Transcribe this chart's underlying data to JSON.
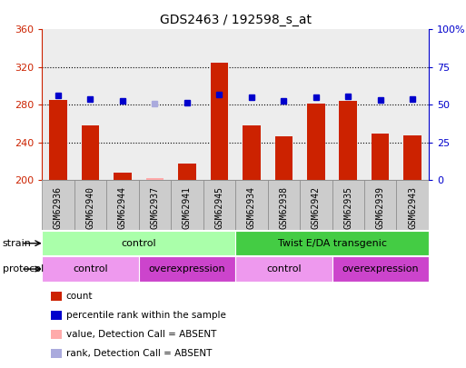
{
  "title": "GDS2463 / 192598_s_at",
  "samples": [
    "GSM62936",
    "GSM62940",
    "GSM62944",
    "GSM62937",
    "GSM62941",
    "GSM62945",
    "GSM62934",
    "GSM62938",
    "GSM62942",
    "GSM62935",
    "GSM62939",
    "GSM62943"
  ],
  "bar_values": [
    285,
    258,
    208,
    202,
    218,
    325,
    258,
    247,
    281,
    284,
    250,
    248
  ],
  "bar_colors": [
    "#cc2200",
    "#cc2200",
    "#cc2200",
    "#ffaaaa",
    "#cc2200",
    "#cc2200",
    "#cc2200",
    "#cc2200",
    "#cc2200",
    "#cc2200",
    "#cc2200",
    "#cc2200"
  ],
  "dot_values": [
    290,
    286,
    284,
    281,
    282,
    291,
    288,
    284,
    288,
    289,
    285,
    286
  ],
  "dot_colors": [
    "#0000cc",
    "#0000cc",
    "#0000cc",
    "#aaaadd",
    "#0000cc",
    "#0000cc",
    "#0000cc",
    "#0000cc",
    "#0000cc",
    "#0000cc",
    "#0000cc",
    "#0000cc"
  ],
  "ylim_left": [
    200,
    360
  ],
  "ylim_right": [
    0,
    100
  ],
  "yticks_left": [
    200,
    240,
    280,
    320,
    360
  ],
  "yticks_right": [
    0,
    25,
    50,
    75,
    100
  ],
  "ytick_labels_right": [
    "0",
    "25",
    "50",
    "75",
    "100%"
  ],
  "grid_values": [
    240,
    280,
    320
  ],
  "strain_groups": [
    {
      "label": "control",
      "start": 0,
      "end": 6,
      "color": "#aaffaa"
    },
    {
      "label": "Twist E/DA transgenic",
      "start": 6,
      "end": 12,
      "color": "#44cc44"
    }
  ],
  "protocol_groups": [
    {
      "label": "control",
      "start": 0,
      "end": 3,
      "color": "#ee99ee"
    },
    {
      "label": "overexpression",
      "start": 3,
      "end": 6,
      "color": "#cc44cc"
    },
    {
      "label": "control",
      "start": 6,
      "end": 9,
      "color": "#ee99ee"
    },
    {
      "label": "overexpression",
      "start": 9,
      "end": 12,
      "color": "#cc44cc"
    }
  ],
  "strain_label": "strain",
  "protocol_label": "protocol",
  "legend_items": [
    {
      "label": "count",
      "color": "#cc2200"
    },
    {
      "label": "percentile rank within the sample",
      "color": "#0000cc"
    },
    {
      "label": "value, Detection Call = ABSENT",
      "color": "#ffaaaa"
    },
    {
      "label": "rank, Detection Call = ABSENT",
      "color": "#aaaadd"
    }
  ],
  "bar_bottom": 200,
  "background_color": "#ffffff",
  "axis_color_left": "#cc2200",
  "axis_color_right": "#0000cc",
  "cell_color": "#cccccc",
  "cell_border": "#888888"
}
